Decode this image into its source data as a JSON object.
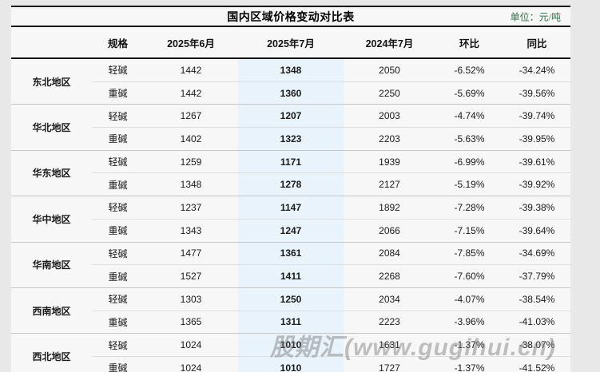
{
  "title": "国内区域价格变动对比表",
  "unit_label": "单位：元/吨",
  "watermark": "股期汇(www.gugihui.cn)",
  "colors": {
    "change_green": "#2cb573",
    "highlight_column_bg": "#e8f3fc",
    "rule_black": "#0a0a0a",
    "page_bg": "#e8e8e8",
    "sheet_bg": "#f7f7f7"
  },
  "chart_data": {
    "type": "table",
    "title": "国内区域价格变动对比表",
    "unit": "元/吨",
    "columns": [
      "规格",
      "2025年6月",
      "2025年7月",
      "2024年7月",
      "环比",
      "同比"
    ],
    "highlighted_column": "2025年7月",
    "regions": [
      {
        "region": "东北地区",
        "rows": [
          [
            "轻碱",
            "1442",
            "1348",
            "2050",
            "-6.52%",
            "-34.24%"
          ],
          [
            "重碱",
            "1442",
            "1360",
            "2250",
            "-5.69%",
            "-39.56%"
          ]
        ]
      },
      {
        "region": "华北地区",
        "rows": [
          [
            "轻碱",
            "1267",
            "1207",
            "2003",
            "-4.74%",
            "-39.74%"
          ],
          [
            "重碱",
            "1402",
            "1323",
            "2203",
            "-5.63%",
            "-39.95%"
          ]
        ]
      },
      {
        "region": "华东地区",
        "rows": [
          [
            "轻碱",
            "1259",
            "1171",
            "1939",
            "-6.99%",
            "-39.61%"
          ],
          [
            "重碱",
            "1348",
            "1278",
            "2127",
            "-5.19%",
            "-39.92%"
          ]
        ]
      },
      {
        "region": "华中地区",
        "rows": [
          [
            "轻碱",
            "1237",
            "1147",
            "1892",
            "-7.28%",
            "-39.38%"
          ],
          [
            "重碱",
            "1343",
            "1247",
            "2066",
            "-7.15%",
            "-39.64%"
          ]
        ]
      },
      {
        "region": "华南地区",
        "rows": [
          [
            "轻碱",
            "1477",
            "1361",
            "2084",
            "-7.85%",
            "-34.69%"
          ],
          [
            "重碱",
            "1527",
            "1411",
            "2268",
            "-7.60%",
            "-37.79%"
          ]
        ]
      },
      {
        "region": "西南地区",
        "rows": [
          [
            "轻碱",
            "1303",
            "1250",
            "2034",
            "-4.07%",
            "-38.54%"
          ],
          [
            "重碱",
            "1365",
            "1311",
            "2223",
            "-3.96%",
            "-41.03%"
          ]
        ]
      },
      {
        "region": "西北地区",
        "rows": [
          [
            "轻碱",
            "1024",
            "1010",
            "1631",
            "-1.37%",
            "-38.07%"
          ],
          [
            "重碱",
            "1024",
            "1010",
            "1727",
            "-1.37%",
            "-41.52%"
          ]
        ]
      }
    ]
  }
}
